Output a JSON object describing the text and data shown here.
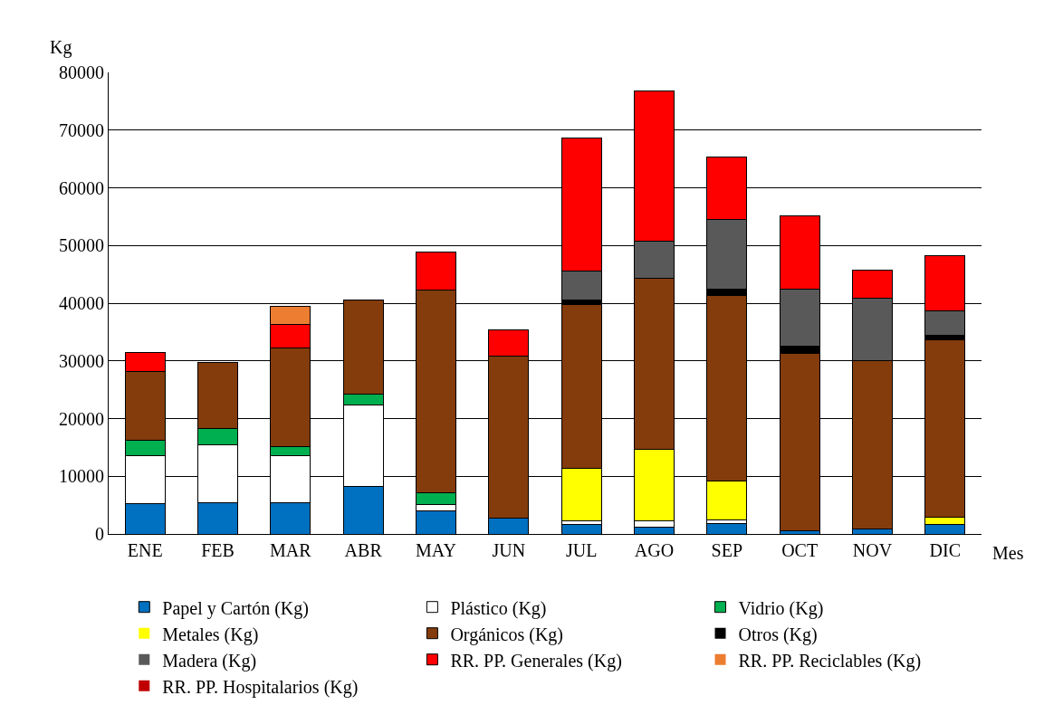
{
  "chart_data": {
    "type": "bar",
    "stacked": true,
    "xlabel": "Mes",
    "ylabel": "Kg",
    "categories": [
      "ENE",
      "FEB",
      "MAR",
      "ABR",
      "MAY",
      "JUN",
      "JUL",
      "AGO",
      "SEP",
      "OCT",
      "NOV",
      "DIC"
    ],
    "series": [
      {
        "name": "Papel y Cartón (Kg)",
        "color": "#0070c0",
        "values": [
          5200,
          5400,
          5400,
          8200,
          4000,
          2800,
          1700,
          1100,
          1800,
          500,
          800,
          1700
        ]
      },
      {
        "name": "Plástico (Kg)",
        "color": "#ffffff",
        "values": [
          8300,
          10100,
          8100,
          14100,
          1100,
          0,
          500,
          1200,
          700,
          0,
          0,
          0
        ]
      },
      {
        "name": "Vidrio (Kg)",
        "color": "#00b050",
        "values": [
          2800,
          2700,
          1700,
          2000,
          2000,
          0,
          0,
          0,
          0,
          0,
          0,
          0
        ]
      },
      {
        "name": "Metales (Kg)",
        "color": "#ffff00",
        "values": [
          0,
          0,
          0,
          0,
          0,
          0,
          9200,
          12300,
          6600,
          0,
          0,
          1200
        ]
      },
      {
        "name": "Orgánicos (Kg)",
        "color": "#843c0c",
        "values": [
          11900,
          11600,
          17000,
          16200,
          35200,
          28000,
          28300,
          29700,
          32300,
          30800,
          29200,
          30800
        ]
      },
      {
        "name": "Otros (Kg)",
        "color": "#000000",
        "values": [
          0,
          0,
          0,
          0,
          0,
          0,
          900,
          0,
          1100,
          1200,
          0,
          700
        ]
      },
      {
        "name": "Madera (Kg)",
        "color": "#595959",
        "values": [
          0,
          0,
          0,
          0,
          0,
          0,
          4900,
          6500,
          12000,
          10000,
          10900,
          4300
        ]
      },
      {
        "name": "RR. PP. Generales (Kg)",
        "color": "#ff0000",
        "values": [
          3300,
          0,
          4100,
          0,
          6600,
          4600,
          23100,
          26000,
          10900,
          12600,
          4800,
          9600
        ]
      },
      {
        "name": "RR. PP. Reciclables (Kg)",
        "color": "#ed7d31",
        "values": [
          0,
          0,
          3200,
          0,
          0,
          0,
          0,
          0,
          0,
          0,
          0,
          0
        ]
      },
      {
        "name": "RR. PP. Hospitalarios (Kg)",
        "color": "#c00000",
        "values": [
          0,
          0,
          0,
          0,
          0,
          0,
          0,
          0,
          0,
          0,
          0,
          0
        ]
      }
    ],
    "ylim": [
      0,
      80000
    ],
    "yticks": [
      0,
      10000,
      20000,
      30000,
      40000,
      50000,
      60000,
      70000,
      80000
    ],
    "grid": "y",
    "legend": "bottom"
  }
}
